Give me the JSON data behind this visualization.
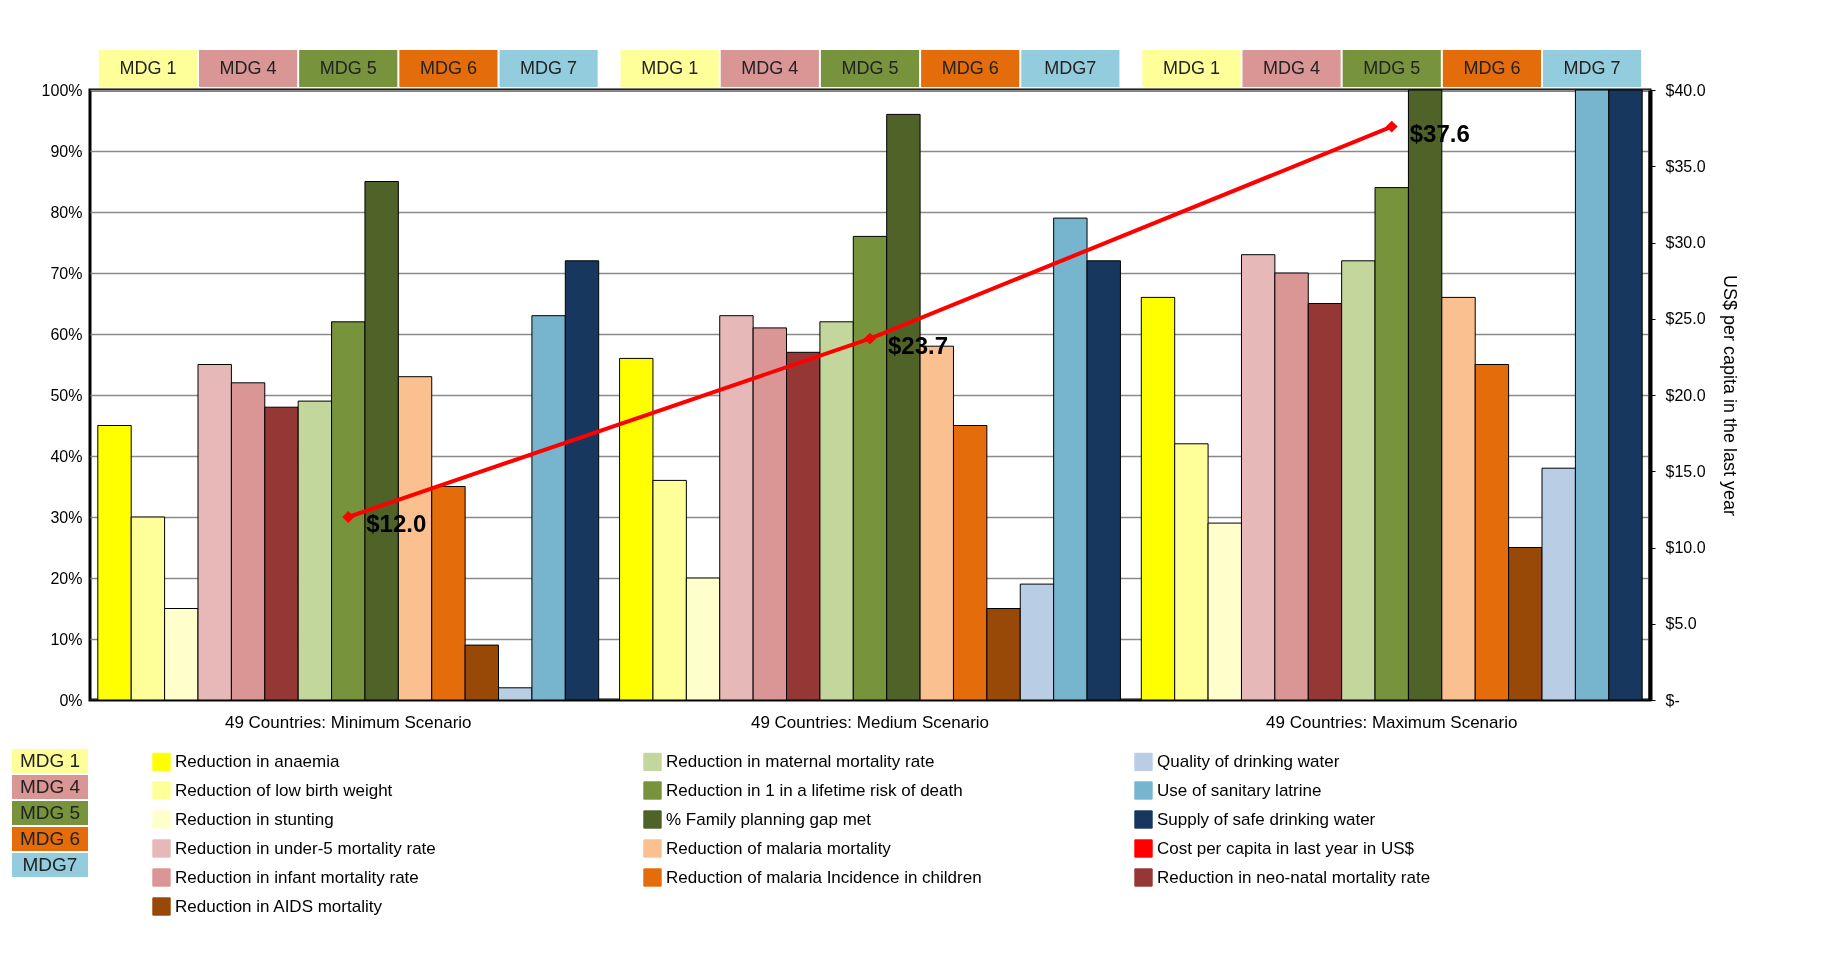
{
  "chart_data": {
    "type": "bar",
    "categories": [
      "49 Countries: Minimum Scenario",
      "49 Countries: Medium Scenario",
      "49 Countries: Maximum Scenario"
    ],
    "series": [
      {
        "name": "Reduction in anaemia",
        "color": "#ffff00",
        "values": [
          45,
          56,
          66
        ]
      },
      {
        "name": "Reduction of low birth weight",
        "color": "#ffff99",
        "values": [
          30,
          36,
          42
        ]
      },
      {
        "name": "Reduction in stunting",
        "color": "#ffffcc",
        "values": [
          15,
          20,
          29
        ]
      },
      {
        "name": "Reduction in under-5 mortality rate",
        "color": "#e6b9b8",
        "values": [
          55,
          63,
          73
        ]
      },
      {
        "name": "Reduction in infant mortality rate",
        "color": "#d99694",
        "values": [
          52,
          61,
          70
        ]
      },
      {
        "name": "Reduction in neo-natal mortality rate",
        "color": "#953735",
        "values": [
          48,
          57,
          65
        ]
      },
      {
        "name": "Reduction in maternal mortality rate",
        "color": "#c3d69b",
        "values": [
          49,
          62,
          72
        ]
      },
      {
        "name": "Reduction in 1 in a lifetime risk of death",
        "color": "#77933c",
        "values": [
          62,
          76,
          84
        ]
      },
      {
        "name": "% Family planning gap met",
        "color": "#4f6228",
        "values": [
          85,
          96,
          100
        ]
      },
      {
        "name": "Reduction of malaria mortality",
        "color": "#fac090",
        "values": [
          53,
          58,
          66
        ]
      },
      {
        "name": "Reduction of malaria Incidence in children",
        "color": "#e46c0a",
        "values": [
          35,
          45,
          55
        ]
      },
      {
        "name": "Reduction in AIDS mortality",
        "color": "#984807",
        "values": [
          9,
          15,
          25
        ]
      },
      {
        "name": "Quality of drinking water",
        "color": "#b9cde5",
        "values": [
          2,
          19,
          38
        ]
      },
      {
        "name": "Use of sanitary latrine",
        "color": "#77b5ce",
        "values": [
          63,
          79,
          100
        ]
      },
      {
        "name": "Supply of safe drinking water",
        "color": "#17375e",
        "values": [
          72,
          72,
          100
        ]
      },
      {
        "name": "Cost per capita in last year in US$",
        "color": "#ff0000",
        "type": "line",
        "axis": "y2",
        "marker": "diamond",
        "values": [
          12.0,
          23.7,
          37.6
        ],
        "value_labels": [
          "$12.0",
          "$23.7",
          "$37.6"
        ]
      }
    ],
    "ylim": [
      0,
      100
    ],
    "yticks": [
      {
        "value": 0,
        "label": "0%"
      },
      {
        "value": 10,
        "label": "10%"
      },
      {
        "value": 20,
        "label": "20%"
      },
      {
        "value": 30,
        "label": "30%"
      },
      {
        "value": 40,
        "label": "40%"
      },
      {
        "value": 50,
        "label": "50%"
      },
      {
        "value": 60,
        "label": "60%"
      },
      {
        "value": 70,
        "label": "70%"
      },
      {
        "value": 80,
        "label": "80%"
      },
      {
        "value": 90,
        "label": "90%"
      },
      {
        "value": 100,
        "label": "100%"
      }
    ],
    "y2lim": [
      0,
      40
    ],
    "y2ticks": [
      {
        "value": 0,
        "label": "$-"
      },
      {
        "value": 5,
        "label": "$5.0"
      },
      {
        "value": 10,
        "label": "$10.0"
      },
      {
        "value": 15,
        "label": "$15.0"
      },
      {
        "value": 20,
        "label": "$20.0"
      },
      {
        "value": 25,
        "label": "$25.0"
      },
      {
        "value": 30,
        "label": "$30.0"
      },
      {
        "value": 35,
        "label": "$35.0"
      },
      {
        "value": 40,
        "label": "$40.0"
      }
    ],
    "y2label": "US$ per capita in the last year",
    "grid": "y",
    "legend": "bottom",
    "annotations": [
      "MDG 1",
      "MDG 4",
      "MDG 5",
      "MDG 6",
      "MDG 7",
      "MDG 1",
      "MDG 4",
      "MDG 5",
      "MDG 6",
      "MDG7",
      "MDG 1",
      "MDG 4",
      "MDG 5",
      "MDG 6",
      "MDG 7",
      "MDG 1",
      "MDG 4",
      "MDG 5",
      "MDG 6",
      "MDG7"
    ]
  }
}
